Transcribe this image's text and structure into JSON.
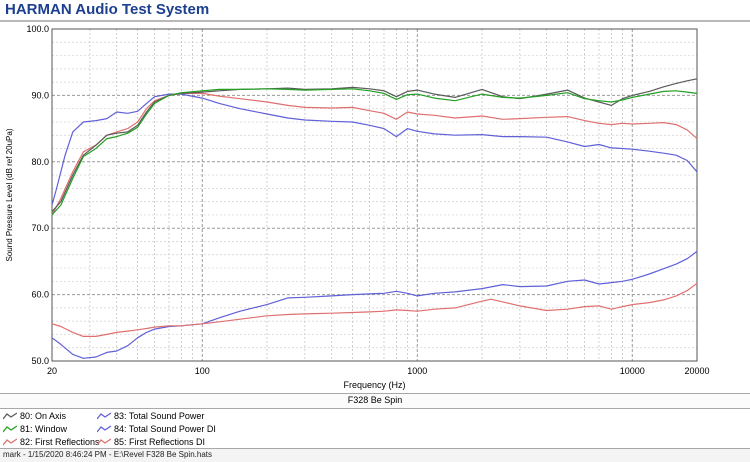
{
  "window": {
    "title": "HARMAN Audio Test System"
  },
  "chart_data": {
    "type": "line",
    "subtitle": "F328 Be Spin",
    "xlabel": "Frequency (Hz)",
    "ylabel": "Sound Pressure Level (dB ref 20uPa)",
    "xscale": "log",
    "xlim": [
      20,
      20000
    ],
    "ylim": [
      50,
      100
    ],
    "yticks": [
      "50.0",
      "60.0",
      "70.0",
      "80.0",
      "90.0",
      "100.0"
    ],
    "xtick_labels": [
      "20",
      "100",
      "1000",
      "10000",
      "20000"
    ],
    "grid": true,
    "legend_position": "bottom",
    "series": [
      {
        "name": "80: On Axis",
        "color": "#5a5a5a",
        "points": [
          [
            20,
            72.5
          ],
          [
            22,
            74
          ],
          [
            25,
            78
          ],
          [
            28,
            81
          ],
          [
            32,
            82.5
          ],
          [
            36,
            84
          ],
          [
            40,
            84.3
          ],
          [
            45,
            84.5
          ],
          [
            50,
            85.5
          ],
          [
            55,
            87.5
          ],
          [
            60,
            89
          ],
          [
            70,
            90
          ],
          [
            80,
            90.3
          ],
          [
            100,
            90.5
          ],
          [
            120,
            90.7
          ],
          [
            150,
            90.9
          ],
          [
            200,
            91
          ],
          [
            250,
            91.1
          ],
          [
            300,
            90.9
          ],
          [
            400,
            91
          ],
          [
            500,
            91.2
          ],
          [
            600,
            91
          ],
          [
            700,
            90.7
          ],
          [
            800,
            89.8
          ],
          [
            900,
            90.6
          ],
          [
            1000,
            90.8
          ],
          [
            1200,
            90.2
          ],
          [
            1500,
            89.7
          ],
          [
            2000,
            90.9
          ],
          [
            2500,
            89.8
          ],
          [
            3000,
            89.5
          ],
          [
            4000,
            90.2
          ],
          [
            5000,
            90.8
          ],
          [
            6000,
            89.6
          ],
          [
            7000,
            89
          ],
          [
            8000,
            88.5
          ],
          [
            9000,
            89.5
          ],
          [
            10000,
            90
          ],
          [
            12000,
            90.6
          ],
          [
            14000,
            91.3
          ],
          [
            16000,
            91.8
          ],
          [
            18000,
            92.2
          ],
          [
            20000,
            92.5
          ]
        ]
      },
      {
        "name": "81: Window",
        "color": "#22a022",
        "points": [
          [
            20,
            72
          ],
          [
            22,
            73.5
          ],
          [
            25,
            77.5
          ],
          [
            28,
            80.8
          ],
          [
            32,
            82
          ],
          [
            36,
            83.5
          ],
          [
            40,
            83.8
          ],
          [
            45,
            84.3
          ],
          [
            50,
            85.2
          ],
          [
            55,
            87.2
          ],
          [
            60,
            88.8
          ],
          [
            70,
            90
          ],
          [
            80,
            90.4
          ],
          [
            100,
            90.7
          ],
          [
            120,
            90.9
          ],
          [
            150,
            90.9
          ],
          [
            200,
            91
          ],
          [
            250,
            90.9
          ],
          [
            300,
            90.8
          ],
          [
            400,
            90.9
          ],
          [
            500,
            91
          ],
          [
            600,
            90.7
          ],
          [
            700,
            90.3
          ],
          [
            800,
            89.4
          ],
          [
            900,
            90.1
          ],
          [
            1000,
            90.2
          ],
          [
            1200,
            89.6
          ],
          [
            1500,
            89.2
          ],
          [
            2000,
            90.2
          ],
          [
            2500,
            89.7
          ],
          [
            3000,
            89.6
          ],
          [
            4000,
            90
          ],
          [
            5000,
            90.4
          ],
          [
            6000,
            89.5
          ],
          [
            7000,
            89.2
          ],
          [
            8000,
            89
          ],
          [
            9000,
            89.3
          ],
          [
            10000,
            89.7
          ],
          [
            12000,
            90.2
          ],
          [
            14000,
            90.6
          ],
          [
            16000,
            90.7
          ],
          [
            18000,
            90.5
          ],
          [
            20000,
            90.3
          ]
        ]
      },
      {
        "name": "82: First Reflections",
        "color": "#e07070",
        "points": [
          [
            20,
            72
          ],
          [
            22,
            74.5
          ],
          [
            25,
            78.5
          ],
          [
            28,
            81.5
          ],
          [
            32,
            82.5
          ],
          [
            36,
            84
          ],
          [
            40,
            84.5
          ],
          [
            45,
            85
          ],
          [
            50,
            86
          ],
          [
            55,
            88
          ],
          [
            60,
            89.2
          ],
          [
            70,
            90
          ],
          [
            80,
            90.3
          ],
          [
            100,
            90.3
          ],
          [
            120,
            89.9
          ],
          [
            150,
            89.5
          ],
          [
            200,
            89
          ],
          [
            250,
            88.5
          ],
          [
            300,
            88.2
          ],
          [
            400,
            88.1
          ],
          [
            500,
            88.2
          ],
          [
            600,
            87.7
          ],
          [
            700,
            87.3
          ],
          [
            800,
            86.4
          ],
          [
            900,
            87.5
          ],
          [
            1000,
            87.2
          ],
          [
            1200,
            87
          ],
          [
            1500,
            86.6
          ],
          [
            2000,
            86.9
          ],
          [
            2500,
            86.4
          ],
          [
            3000,
            86.5
          ],
          [
            4000,
            86.7
          ],
          [
            5000,
            86.8
          ],
          [
            6000,
            86.2
          ],
          [
            7000,
            85.8
          ],
          [
            8000,
            85.6
          ],
          [
            9000,
            85.8
          ],
          [
            10000,
            85.7
          ],
          [
            12000,
            85.8
          ],
          [
            14000,
            85.9
          ],
          [
            16000,
            85.6
          ],
          [
            18000,
            84.8
          ],
          [
            20000,
            83.5
          ]
        ]
      },
      {
        "name": "83: Total Sound Power",
        "color": "#6060d8",
        "points": [
          [
            20,
            73.5
          ],
          [
            21,
            76
          ],
          [
            23,
            81
          ],
          [
            25,
            84.5
          ],
          [
            28,
            86
          ],
          [
            32,
            86.2
          ],
          [
            36,
            86.5
          ],
          [
            40,
            87.5
          ],
          [
            45,
            87.3
          ],
          [
            50,
            87.6
          ],
          [
            55,
            88.8
          ],
          [
            60,
            89.8
          ],
          [
            70,
            90.2
          ],
          [
            80,
            90.2
          ],
          [
            100,
            89.6
          ],
          [
            120,
            88.8
          ],
          [
            150,
            88
          ],
          [
            200,
            87.2
          ],
          [
            250,
            86.6
          ],
          [
            300,
            86.3
          ],
          [
            400,
            86.1
          ],
          [
            500,
            86
          ],
          [
            600,
            85.5
          ],
          [
            700,
            85
          ],
          [
            800,
            83.8
          ],
          [
            900,
            85
          ],
          [
            1000,
            84.6
          ],
          [
            1200,
            84.2
          ],
          [
            1500,
            84
          ],
          [
            2000,
            84.1
          ],
          [
            2500,
            83.8
          ],
          [
            3000,
            83.8
          ],
          [
            4000,
            83.7
          ],
          [
            5000,
            83
          ],
          [
            6000,
            82.3
          ],
          [
            7000,
            82.6
          ],
          [
            8000,
            82.1
          ],
          [
            9000,
            82
          ],
          [
            10000,
            81.9
          ],
          [
            12000,
            81.6
          ],
          [
            14000,
            81.3
          ],
          [
            16000,
            81
          ],
          [
            18000,
            80.2
          ],
          [
            20000,
            78.5
          ]
        ]
      },
      {
        "name": "84: Total Sound Power DI",
        "color": "#6060d8",
        "points": [
          [
            20,
            53.5
          ],
          [
            22,
            52.5
          ],
          [
            25,
            51
          ],
          [
            28,
            50.4
          ],
          [
            32,
            50.6
          ],
          [
            36,
            51.3
          ],
          [
            40,
            51.5
          ],
          [
            45,
            52.3
          ],
          [
            50,
            53.5
          ],
          [
            55,
            54.3
          ],
          [
            60,
            54.8
          ],
          [
            70,
            55.2
          ],
          [
            80,
            55.3
          ],
          [
            100,
            55.6
          ],
          [
            120,
            56.5
          ],
          [
            150,
            57.5
          ],
          [
            200,
            58.5
          ],
          [
            250,
            59.5
          ],
          [
            300,
            59.6
          ],
          [
            400,
            59.8
          ],
          [
            500,
            60
          ],
          [
            600,
            60.1
          ],
          [
            700,
            60.2
          ],
          [
            800,
            60.5
          ],
          [
            900,
            60.2
          ],
          [
            1000,
            59.8
          ],
          [
            1200,
            60.2
          ],
          [
            1500,
            60.4
          ],
          [
            2000,
            60.9
          ],
          [
            2500,
            61.5
          ],
          [
            3000,
            61.2
          ],
          [
            4000,
            61.3
          ],
          [
            5000,
            62
          ],
          [
            6000,
            62.2
          ],
          [
            7000,
            61.6
          ],
          [
            8000,
            61.8
          ],
          [
            9000,
            62
          ],
          [
            10000,
            62.3
          ],
          [
            12000,
            63.1
          ],
          [
            14000,
            63.9
          ],
          [
            16000,
            64.6
          ],
          [
            18000,
            65.4
          ],
          [
            20000,
            66.5
          ]
        ]
      },
      {
        "name": "85: First Reflections DI",
        "color": "#e07070",
        "points": [
          [
            20,
            55.6
          ],
          [
            22,
            55.2
          ],
          [
            25,
            54.3
          ],
          [
            28,
            53.7
          ],
          [
            32,
            53.7
          ],
          [
            36,
            54
          ],
          [
            40,
            54.3
          ],
          [
            45,
            54.5
          ],
          [
            50,
            54.7
          ],
          [
            55,
            54.9
          ],
          [
            60,
            55.1
          ],
          [
            70,
            55.3
          ],
          [
            80,
            55.3
          ],
          [
            100,
            55.6
          ],
          [
            120,
            55.9
          ],
          [
            150,
            56.3
          ],
          [
            200,
            56.8
          ],
          [
            250,
            57
          ],
          [
            300,
            57.1
          ],
          [
            400,
            57.2
          ],
          [
            500,
            57.3
          ],
          [
            600,
            57.4
          ],
          [
            700,
            57.5
          ],
          [
            800,
            57.7
          ],
          [
            900,
            57.6
          ],
          [
            1000,
            57.5
          ],
          [
            1200,
            57.8
          ],
          [
            1500,
            58
          ],
          [
            2000,
            59
          ],
          [
            2200,
            59.3
          ],
          [
            2500,
            58.9
          ],
          [
            3000,
            58.3
          ],
          [
            4000,
            57.6
          ],
          [
            5000,
            57.8
          ],
          [
            6000,
            58.2
          ],
          [
            7000,
            58.3
          ],
          [
            8000,
            57.8
          ],
          [
            9000,
            58.2
          ],
          [
            10000,
            58.5
          ],
          [
            12000,
            58.8
          ],
          [
            14000,
            59.2
          ],
          [
            16000,
            59.8
          ],
          [
            18000,
            60.6
          ],
          [
            20000,
            61.7
          ]
        ]
      }
    ]
  },
  "status": {
    "text": "mark - 1/15/2020 8:46:24 PM - E:\\Revel F328 Be Spin.hats"
  }
}
